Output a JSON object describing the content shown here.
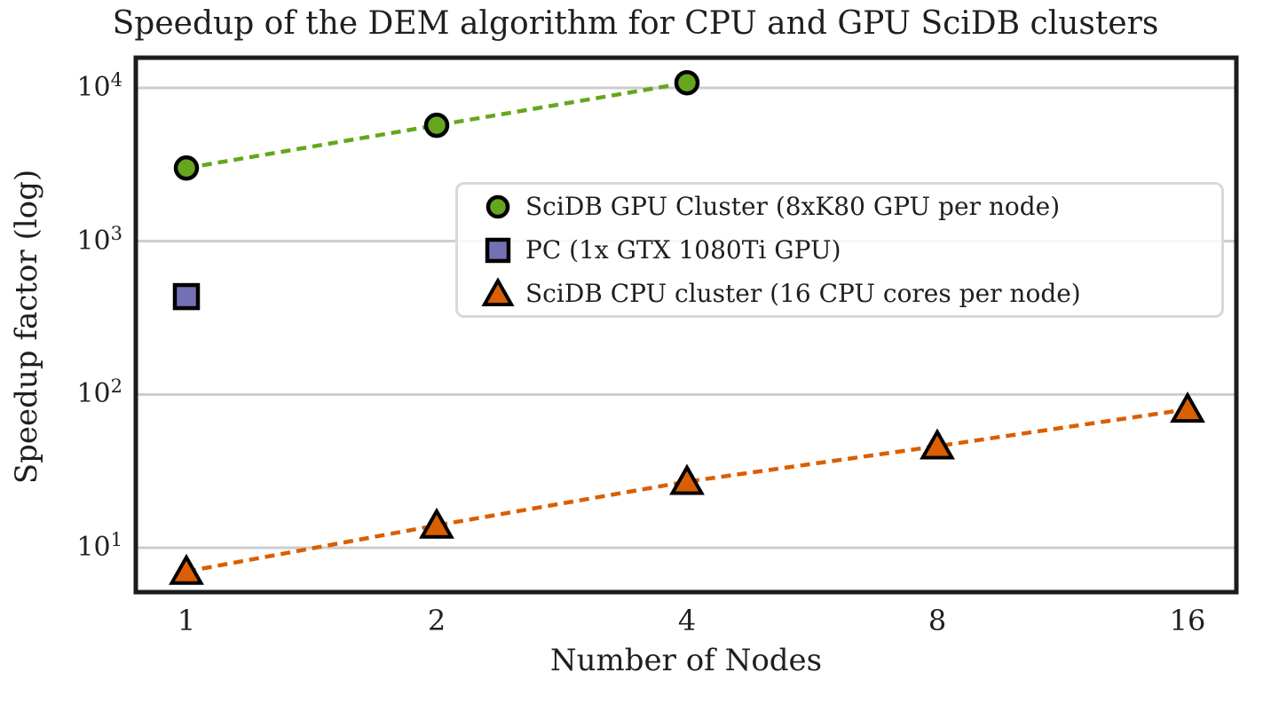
{
  "chart_data": {
    "type": "line",
    "title": "Speedup of the DEM algorithm for CPU and GPU SciDB clusters",
    "xlabel": "Number of Nodes",
    "ylabel": "Speedup factor (log)",
    "x_scale": "log2",
    "y_scale": "log10",
    "grid": "horizontal-major",
    "legend_position": "center-right",
    "xlim": [
      0.87,
      18.3
    ],
    "ylim": [
      5.1,
      15700
    ],
    "x_ticks": [
      "1",
      "2",
      "4",
      "8",
      "16"
    ],
    "x_tick_values": [
      1,
      2,
      4,
      8,
      16
    ],
    "y_ticks": [
      {
        "base": "10",
        "exp": "4",
        "value": 10000
      },
      {
        "base": "10",
        "exp": "3",
        "value": 1000
      },
      {
        "base": "10",
        "exp": "2",
        "value": 100
      },
      {
        "base": "10",
        "exp": "1",
        "value": 10
      }
    ],
    "series": [
      {
        "key": "gpu-cluster",
        "label": "SciDB GPU Cluster (8xK80 GPU per node)",
        "marker": "circle",
        "color": "#66a61e",
        "line": "dashed",
        "x": [
          1,
          2,
          4
        ],
        "values": [
          3000,
          5700,
          10800
        ]
      },
      {
        "key": "pc",
        "label": "PC (1x GTX 1080Ti GPU)",
        "marker": "square",
        "color": "#7570b3",
        "line": "none",
        "x": [
          1
        ],
        "values": [
          435
        ]
      },
      {
        "key": "cpu-cluster",
        "label": "SciDB CPU cluster (16 CPU cores per node)",
        "marker": "triangle",
        "color": "#d95f02",
        "line": "dashed",
        "x": [
          1,
          2,
          4,
          8,
          16
        ],
        "values": [
          7,
          14,
          27,
          46,
          80
        ]
      }
    ],
    "colors": {
      "grid": "#cccccc",
      "frame": "#1c1c1c",
      "text": "#1f1f1f",
      "legend_border": "#d9d9d9",
      "marker_edge": "#000000"
    }
  }
}
